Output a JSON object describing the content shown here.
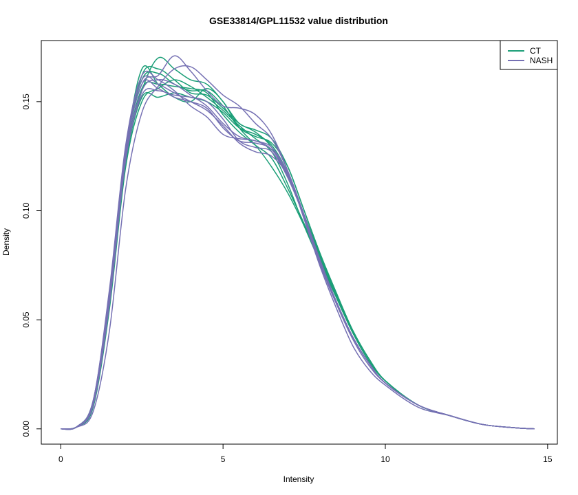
{
  "chart_data": {
    "type": "line",
    "title": "GSE33814/GPL11532 value distribution",
    "xlabel": "Intensity",
    "ylabel": "Density",
    "xlim": [
      -0.6,
      15.3
    ],
    "ylim": [
      -0.007,
      0.178
    ],
    "x_ticks": [
      0,
      5,
      10,
      15
    ],
    "y_ticks": [
      0.0,
      0.05,
      0.1,
      0.15
    ],
    "x_tick_labels": [
      "0",
      "5",
      "10",
      "15"
    ],
    "y_tick_labels": [
      "0.00",
      "0.05",
      "0.10",
      "0.15"
    ],
    "grid": false,
    "legend_position": "top-right",
    "legend": [
      {
        "label": "CT",
        "color": "#1b9e77"
      },
      {
        "label": "NASH",
        "color": "#7570b3"
      }
    ],
    "series": [
      {
        "group": "CT",
        "color": "#1b9e77",
        "x": [
          0,
          0.5,
          1,
          1.5,
          2,
          2.5,
          3,
          3.5,
          4,
          4.5,
          5,
          5.5,
          6,
          6.5,
          7,
          7.5,
          8,
          8.5,
          9,
          9.5,
          10,
          11,
          12,
          13,
          14,
          14.6
        ],
        "y": [
          0,
          0.001,
          0.012,
          0.06,
          0.125,
          0.155,
          0.17,
          0.165,
          0.16,
          0.158,
          0.15,
          0.14,
          0.137,
          0.133,
          0.12,
          0.1,
          0.08,
          0.062,
          0.045,
          0.032,
          0.022,
          0.011,
          0.006,
          0.002,
          0.0005,
          0
        ]
      },
      {
        "group": "CT",
        "color": "#1b9e77",
        "x": [
          0,
          0.5,
          1,
          1.5,
          2,
          2.5,
          3,
          3.5,
          4,
          4.5,
          5,
          5.5,
          6,
          6.5,
          7,
          7.5,
          8,
          8.5,
          9,
          9.5,
          10,
          11,
          12,
          13,
          14,
          14.6
        ],
        "y": [
          0,
          0.001,
          0.011,
          0.057,
          0.122,
          0.152,
          0.152,
          0.154,
          0.152,
          0.15,
          0.145,
          0.138,
          0.135,
          0.13,
          0.117,
          0.097,
          0.078,
          0.06,
          0.044,
          0.031,
          0.022,
          0.011,
          0.006,
          0.002,
          0.0005,
          0
        ]
      },
      {
        "group": "CT",
        "color": "#1b9e77",
        "x": [
          0,
          0.5,
          1,
          1.5,
          2,
          2.5,
          3,
          3.5,
          4,
          4.5,
          5,
          5.5,
          6,
          6.5,
          7,
          7.5,
          8,
          8.5,
          9,
          9.5,
          10,
          11,
          12,
          13,
          14,
          14.6
        ],
        "y": [
          0,
          0.001,
          0.013,
          0.062,
          0.128,
          0.16,
          0.163,
          0.158,
          0.155,
          0.155,
          0.148,
          0.138,
          0.134,
          0.131,
          0.12,
          0.1,
          0.08,
          0.062,
          0.045,
          0.032,
          0.022,
          0.011,
          0.006,
          0.002,
          0.0005,
          0
        ]
      },
      {
        "group": "CT",
        "color": "#1b9e77",
        "x": [
          0,
          0.5,
          1,
          1.5,
          2,
          2.5,
          3,
          3.5,
          4,
          4.5,
          5,
          5.5,
          6,
          6.5,
          7,
          7.5,
          8,
          8.5,
          9,
          9.5,
          10,
          11,
          12,
          13,
          14,
          14.6
        ],
        "y": [
          0,
          0.001,
          0.01,
          0.055,
          0.12,
          0.15,
          0.156,
          0.16,
          0.157,
          0.152,
          0.146,
          0.139,
          0.133,
          0.127,
          0.112,
          0.093,
          0.076,
          0.06,
          0.044,
          0.031,
          0.022,
          0.011,
          0.006,
          0.002,
          0.0005,
          0
        ]
      },
      {
        "group": "CT",
        "color": "#1b9e77",
        "x": [
          0,
          0.5,
          1,
          1.5,
          2,
          2.5,
          3,
          3.5,
          4,
          4.5,
          5,
          5.5,
          6,
          6.5,
          7,
          7.5,
          8,
          8.5,
          9,
          9.5,
          10,
          11,
          12,
          13,
          14,
          14.6
        ],
        "y": [
          0,
          0.001,
          0.012,
          0.059,
          0.125,
          0.162,
          0.165,
          0.16,
          0.154,
          0.153,
          0.147,
          0.14,
          0.136,
          0.129,
          0.115,
          0.098,
          0.079,
          0.061,
          0.045,
          0.032,
          0.022,
          0.011,
          0.006,
          0.002,
          0.0005,
          0
        ]
      },
      {
        "group": "CT",
        "color": "#1b9e77",
        "x": [
          0,
          0.5,
          1,
          1.5,
          2,
          2.5,
          3,
          3.5,
          4,
          4.5,
          5,
          5.5,
          6,
          6.5,
          7,
          7.5,
          8,
          8.5,
          9,
          9.5,
          10,
          11,
          12,
          13,
          14,
          14.6
        ],
        "y": [
          0,
          0.001,
          0.011,
          0.058,
          0.124,
          0.156,
          0.158,
          0.157,
          0.156,
          0.154,
          0.144,
          0.136,
          0.13,
          0.124,
          0.11,
          0.094,
          0.077,
          0.06,
          0.044,
          0.031,
          0.022,
          0.011,
          0.006,
          0.002,
          0.0005,
          0
        ]
      },
      {
        "group": "CT",
        "color": "#1b9e77",
        "x": [
          0,
          0.5,
          1,
          1.5,
          2,
          2.5,
          3,
          3.5,
          4,
          4.5,
          5,
          5.5,
          6,
          6.5,
          7,
          7.5,
          8,
          8.5,
          9,
          9.5,
          10,
          11,
          12,
          13,
          14,
          14.6
        ],
        "y": [
          0,
          0.001,
          0.012,
          0.061,
          0.127,
          0.165,
          0.158,
          0.152,
          0.15,
          0.156,
          0.15,
          0.138,
          0.13,
          0.12,
          0.108,
          0.093,
          0.076,
          0.06,
          0.044,
          0.031,
          0.022,
          0.011,
          0.006,
          0.002,
          0.0005,
          0
        ]
      },
      {
        "group": "NASH",
        "color": "#7570b3",
        "x": [
          0,
          0.5,
          1,
          1.5,
          2,
          2.5,
          3,
          3.5,
          4,
          4.5,
          5,
          5.5,
          6,
          6.5,
          7,
          7.5,
          8,
          8.5,
          9,
          9.5,
          10,
          11,
          12,
          13,
          14,
          14.6
        ],
        "y": [
          0,
          0.001,
          0.012,
          0.061,
          0.127,
          0.158,
          0.162,
          0.171,
          0.164,
          0.155,
          0.148,
          0.147,
          0.144,
          0.135,
          0.118,
          0.096,
          0.074,
          0.055,
          0.038,
          0.027,
          0.02,
          0.01,
          0.006,
          0.002,
          0.0005,
          0
        ]
      },
      {
        "group": "NASH",
        "color": "#7570b3",
        "x": [
          0,
          0.5,
          1,
          1.5,
          2,
          2.5,
          3,
          3.5,
          4,
          4.5,
          5,
          5.5,
          6,
          6.5,
          7,
          7.5,
          8,
          8.5,
          9,
          9.5,
          10,
          11,
          12,
          13,
          14,
          14.6
        ],
        "y": [
          0,
          0.0008,
          0.008,
          0.045,
          0.11,
          0.145,
          0.157,
          0.165,
          0.166,
          0.16,
          0.153,
          0.148,
          0.14,
          0.133,
          0.118,
          0.098,
          0.076,
          0.058,
          0.042,
          0.03,
          0.021,
          0.011,
          0.006,
          0.002,
          0.0005,
          0
        ]
      },
      {
        "group": "NASH",
        "color": "#7570b3",
        "x": [
          0,
          0.5,
          1,
          1.5,
          2,
          2.5,
          3,
          3.5,
          4,
          4.5,
          5,
          5.5,
          6,
          6.5,
          7,
          7.5,
          8,
          8.5,
          9,
          9.5,
          10,
          11,
          12,
          13,
          14,
          14.6
        ],
        "y": [
          0,
          0.001,
          0.013,
          0.064,
          0.13,
          0.162,
          0.16,
          0.155,
          0.148,
          0.143,
          0.135,
          0.133,
          0.132,
          0.128,
          0.117,
          0.097,
          0.076,
          0.058,
          0.042,
          0.03,
          0.021,
          0.011,
          0.006,
          0.002,
          0.0005,
          0
        ]
      },
      {
        "group": "NASH",
        "color": "#7570b3",
        "x": [
          0,
          0.5,
          1,
          1.5,
          2,
          2.5,
          3,
          3.5,
          4,
          4.5,
          5,
          5.5,
          6,
          6.5,
          7,
          7.5,
          8,
          8.5,
          9,
          9.5,
          10,
          11,
          12,
          13,
          14,
          14.6
        ],
        "y": [
          0,
          0.001,
          0.012,
          0.06,
          0.126,
          0.158,
          0.156,
          0.152,
          0.15,
          0.147,
          0.138,
          0.132,
          0.131,
          0.128,
          0.116,
          0.097,
          0.075,
          0.057,
          0.041,
          0.029,
          0.021,
          0.011,
          0.006,
          0.002,
          0.0005,
          0
        ]
      },
      {
        "group": "NASH",
        "color": "#7570b3",
        "x": [
          0,
          0.5,
          1,
          1.5,
          2,
          2.5,
          3,
          3.5,
          4,
          4.5,
          5,
          5.5,
          6,
          6.5,
          7,
          7.5,
          8,
          8.5,
          9,
          9.5,
          10,
          11,
          12,
          13,
          14,
          14.6
        ],
        "y": [
          0,
          0.001,
          0.011,
          0.058,
          0.124,
          0.155,
          0.16,
          0.158,
          0.153,
          0.148,
          0.14,
          0.134,
          0.132,
          0.129,
          0.117,
          0.098,
          0.077,
          0.058,
          0.042,
          0.03,
          0.021,
          0.011,
          0.006,
          0.002,
          0.0005,
          0
        ]
      },
      {
        "group": "NASH",
        "color": "#7570b3",
        "x": [
          0,
          0.5,
          1,
          1.5,
          2,
          2.5,
          3,
          3.5,
          4,
          4.5,
          5,
          5.5,
          6,
          6.5,
          7,
          7.5,
          8,
          8.5,
          9,
          9.5,
          10,
          11,
          12,
          13,
          14,
          14.6
        ],
        "y": [
          0,
          0.001,
          0.013,
          0.063,
          0.129,
          0.16,
          0.158,
          0.154,
          0.15,
          0.146,
          0.139,
          0.131,
          0.127,
          0.125,
          0.116,
          0.097,
          0.076,
          0.058,
          0.042,
          0.03,
          0.021,
          0.011,
          0.006,
          0.002,
          0.0005,
          0
        ]
      },
      {
        "group": "NASH",
        "color": "#7570b3",
        "x": [
          0,
          0.5,
          1,
          1.5,
          2,
          2.5,
          3,
          3.5,
          4,
          4.5,
          5,
          5.5,
          6,
          6.5,
          7,
          7.5,
          8,
          8.5,
          9,
          9.5,
          10,
          11,
          12,
          13,
          14,
          14.6
        ],
        "y": [
          0,
          0.001,
          0.011,
          0.057,
          0.123,
          0.153,
          0.155,
          0.153,
          0.152,
          0.15,
          0.142,
          0.132,
          0.129,
          0.127,
          0.115,
          0.097,
          0.076,
          0.058,
          0.042,
          0.03,
          0.021,
          0.011,
          0.006,
          0.002,
          0.0005,
          0
        ]
      }
    ]
  }
}
